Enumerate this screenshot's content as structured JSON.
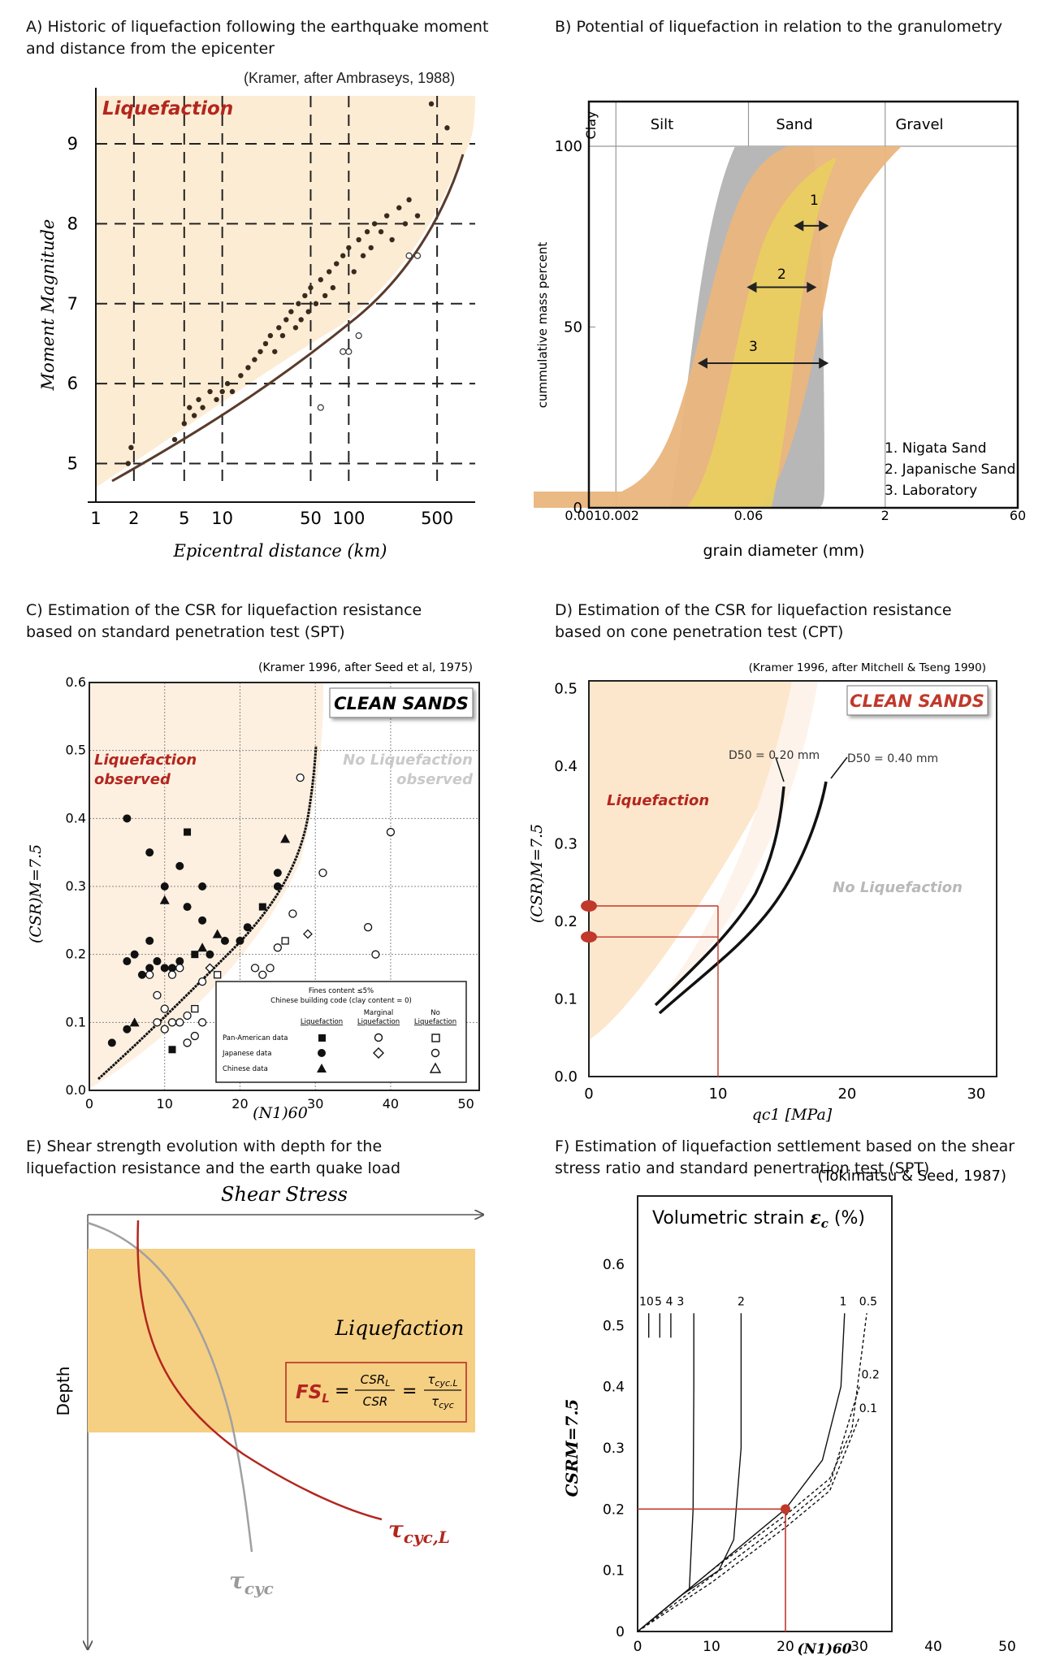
{
  "panels": {
    "A": {
      "title_line1": "A) Historic of liquefaction following the earthquake moment",
      "title_line2": "and distance from the epicenter",
      "source": "(Kramer, after Ambraseys, 1988)",
      "region_label": "Liquefaction",
      "xlabel": "Epicentral distance (km)",
      "ylabel": "Moment Magnitude",
      "xticks": [
        "1",
        "2",
        "5",
        "10",
        "50",
        "100",
        "500"
      ],
      "yticks": [
        "5",
        "6",
        "7",
        "8",
        "9"
      ]
    },
    "B": {
      "title": "B) Potential of liquefaction in relation to the granulometry",
      "classes": [
        "Clay",
        "Silt",
        "Sand",
        "Gravel"
      ],
      "ylabel": "cummulative mass percent",
      "xlabel": "grain diameter (mm)",
      "xticks": [
        "0.001",
        "0.002",
        "0.06",
        "2",
        "60"
      ],
      "yticks": [
        "0",
        "50",
        "100"
      ],
      "band_numbers": [
        "1",
        "2",
        "3"
      ],
      "legend": [
        "1. Nigata Sand",
        "2. Japanische Sand",
        "3. Laboratory"
      ]
    },
    "C": {
      "title_line1": "C) Estimation of the CSR for liquefaction resistance",
      "title_line2": "based on standard penetration test (SPT)",
      "source": "(Kramer 1996, after Seed et al, 1975)",
      "badge": "CLEAN SANDS",
      "liq_label_1": "Liquefaction",
      "liq_label_2": "observed",
      "noliq_label_1": "No Liquefaction",
      "noliq_label_2": "observed",
      "ylabel": "(CSR)M=7.5",
      "xlabel": "(N1)60",
      "xticks": [
        "0",
        "10",
        "20",
        "30",
        "40",
        "50"
      ],
      "yticks": [
        "0.0",
        "0.1",
        "0.2",
        "0.3",
        "0.4",
        "0.5",
        "0.6"
      ],
      "legend": {
        "header1": "Fines content ≤5%",
        "header2": "Chinese building code (clay content = 0)",
        "col_liq": "Liquefaction",
        "col_marg_1": "Marginal",
        "col_marg_2": "Liquefaction",
        "col_no_1": "No",
        "col_no_2": "Liquefaction",
        "rows": [
          "Pan-American data",
          "Japanese data",
          "Chinese data"
        ]
      }
    },
    "D": {
      "title_line1": "D) Estimation of the CSR for liquefaction resistance",
      "title_line2": "based on cone penetration test (CPT)",
      "source": "(Kramer 1996, after Mitchell & Tseng 1990)",
      "badge": "CLEAN SANDS",
      "liq_label": "Liquefaction",
      "noliq_label": "No Liquefaction",
      "curve1_label": "D50 = 0.20 mm",
      "curve2_label": "D50 = 0.40 mm",
      "ylabel": "(CSR)M=7.5",
      "xlabel": "qc1 [MPa]",
      "xticks": [
        "0",
        "10",
        "20",
        "30"
      ],
      "yticks": [
        "0.0",
        "0.1",
        "0.2",
        "0.3",
        "0.4",
        "0.5"
      ]
    },
    "E": {
      "title_line1": "E) Shear strength evolution with depth for the",
      "title_line2": "liquefaction resistance and the earth quake load",
      "xlabel": "Shear Stress",
      "ylabel": "Depth",
      "zone_label": "Liquefaction",
      "formula": "FSL = CSRL / CSR = τcyc.L / τcyc",
      "curve_resistance": "τcyc,L",
      "curve_load": "τcyc"
    },
    "F": {
      "title_line1": "F) Estimation of liquefaction settlement based on the shear",
      "title_line2": "stress ratio and standard penertration test (SPT)",
      "source": "(Tokimatsu & Seed, 1987)",
      "box_title": "Volumetric strain εc (%)",
      "curve_labels": [
        "10",
        "5",
        "4",
        "3",
        "2",
        "1",
        "0.5",
        "0.2",
        "0.1"
      ],
      "ylabel": "CSRM=7.5",
      "xlabel": "(N1)60",
      "xticks": [
        "0",
        "10",
        "20",
        "30",
        "40",
        "50"
      ],
      "yticks": [
        "0",
        "0.1",
        "0.2",
        "0.3",
        "0.4",
        "0.5",
        "0.6"
      ]
    }
  },
  "chart_data": [
    {
      "id": "A",
      "type": "scatter",
      "title": "Historic of liquefaction following the earthquake moment and distance from the epicenter",
      "xlabel": "Epicentral distance (km)",
      "ylabel": "Moment Magnitude",
      "xscale": "log",
      "xlim": [
        1,
        1000
      ],
      "ylim": [
        4.7,
        9.6
      ],
      "boundary": {
        "x": [
          1.5,
          3,
          5,
          10,
          20,
          40,
          70,
          120,
          200,
          350,
          600
        ],
        "y": [
          4.8,
          5.1,
          5.4,
          5.8,
          6.1,
          6.5,
          6.9,
          7.4,
          7.8,
          8.4,
          9.1
        ]
      },
      "series": [
        {
          "name": "liquefaction",
          "points": [
            [
              1.8,
              5.0
            ],
            [
              1.9,
              5.2
            ],
            [
              4.2,
              5.3
            ],
            [
              5,
              5.5
            ],
            [
              5.5,
              5.7
            ],
            [
              6,
              5.6
            ],
            [
              6.5,
              5.8
            ],
            [
              7,
              5.7
            ],
            [
              8,
              5.9
            ],
            [
              9,
              5.8
            ],
            [
              10,
              5.9
            ],
            [
              11,
              6.0
            ],
            [
              12,
              5.9
            ],
            [
              14,
              6.1
            ],
            [
              16,
              6.2
            ],
            [
              18,
              6.3
            ],
            [
              20,
              6.4
            ],
            [
              22,
              6.5
            ],
            [
              24,
              6.6
            ],
            [
              26,
              6.4
            ],
            [
              28,
              6.7
            ],
            [
              30,
              6.6
            ],
            [
              32,
              6.8
            ],
            [
              35,
              6.9
            ],
            [
              38,
              6.7
            ],
            [
              40,
              7.0
            ],
            [
              42,
              6.8
            ],
            [
              45,
              7.1
            ],
            [
              48,
              6.9
            ],
            [
              50,
              7.2
            ],
            [
              55,
              7.0
            ],
            [
              60,
              7.3
            ],
            [
              65,
              7.1
            ],
            [
              70,
              7.4
            ],
            [
              75,
              7.2
            ],
            [
              80,
              7.5
            ],
            [
              90,
              7.6
            ],
            [
              100,
              7.7
            ],
            [
              110,
              7.4
            ],
            [
              120,
              7.8
            ],
            [
              130,
              7.6
            ],
            [
              140,
              7.9
            ],
            [
              150,
              7.7
            ],
            [
              160,
              8.0
            ],
            [
              180,
              7.9
            ],
            [
              200,
              8.1
            ],
            [
              220,
              7.8
            ],
            [
              250,
              8.2
            ],
            [
              280,
              8.0
            ],
            [
              300,
              8.3
            ],
            [
              350,
              8.1
            ],
            [
              450,
              9.5
            ],
            [
              600,
              9.2
            ]
          ]
        },
        {
          "name": "no liquefaction",
          "points": [
            [
              60,
              5.7
            ],
            [
              90,
              6.4
            ],
            [
              100,
              6.4
            ],
            [
              120,
              6.6
            ],
            [
              300,
              7.6
            ],
            [
              350,
              7.6
            ]
          ]
        }
      ]
    },
    {
      "id": "B",
      "type": "area",
      "title": "Potential of liquefaction in relation to the granulometry",
      "xlabel": "grain diameter (mm)",
      "ylabel": "cummulative mass percent",
      "xscale": "log",
      "xlim": [
        0.001,
        60
      ],
      "ylim": [
        0,
        100
      ],
      "series": [
        {
          "name": "Nigata Sand",
          "d_at_50pct_range": [
            0.07,
            0.3
          ]
        },
        {
          "name": "Japanische Sand",
          "d_at_50pct_range": [
            0.05,
            0.3
          ]
        },
        {
          "name": "Laboratory",
          "d_at_50pct_range": [
            0.02,
            0.4
          ]
        }
      ]
    },
    {
      "id": "C",
      "type": "scatter",
      "title": "Estimation of the CSR for liquefaction resistance based on standard penetration test (SPT)",
      "xlabel": "(N1)60",
      "ylabel": "(CSR)M=7.5",
      "xlim": [
        0,
        50
      ],
      "ylim": [
        0,
        0.6
      ],
      "boundary": {
        "x": [
          1,
          5,
          10,
          15,
          20,
          25,
          28,
          30
        ],
        "y": [
          0.01,
          0.06,
          0.11,
          0.16,
          0.22,
          0.31,
          0.38,
          0.45
        ]
      },
      "series": [
        {
          "name": "liquefaction",
          "points": [
            [
              5,
              0.4
            ],
            [
              8,
              0.35
            ],
            [
              10,
              0.3
            ],
            [
              10,
              0.28
            ],
            [
              12,
              0.33
            ],
            [
              13,
              0.38
            ],
            [
              13,
              0.27
            ],
            [
              15,
              0.3
            ],
            [
              15,
              0.25
            ],
            [
              16,
              0.2
            ],
            [
              17,
              0.23
            ],
            [
              18,
              0.22
            ],
            [
              20,
              0.22
            ],
            [
              21,
              0.24
            ],
            [
              23,
              0.27
            ],
            [
              25,
              0.3
            ],
            [
              25,
              0.32
            ],
            [
              26,
              0.37
            ],
            [
              8,
              0.22
            ],
            [
              9,
              0.19
            ],
            [
              10,
              0.18
            ],
            [
              11,
              0.18
            ],
            [
              12,
              0.19
            ],
            [
              14,
              0.2
            ],
            [
              15,
              0.21
            ],
            [
              5,
              0.19
            ],
            [
              6,
              0.2
            ],
            [
              7,
              0.17
            ],
            [
              8,
              0.18
            ],
            [
              3,
              0.07
            ],
            [
              5,
              0.09
            ],
            [
              6,
              0.1
            ],
            [
              11,
              0.06
            ]
          ]
        },
        {
          "name": "no liquefaction",
          "points": [
            [
              28,
              0.46
            ],
            [
              31,
              0.32
            ],
            [
              40,
              0.38
            ],
            [
              37,
              0.24
            ],
            [
              29,
              0.23
            ],
            [
              27,
              0.26
            ],
            [
              26,
              0.22
            ],
            [
              25,
              0.21
            ],
            [
              38,
              0.2
            ],
            [
              22,
              0.18
            ],
            [
              23,
              0.17
            ],
            [
              24,
              0.18
            ],
            [
              15,
              0.16
            ],
            [
              16,
              0.18
            ],
            [
              17,
              0.17
            ],
            [
              9,
              0.14
            ],
            [
              10,
              0.12
            ],
            [
              9,
              0.1
            ],
            [
              10,
              0.09
            ],
            [
              11,
              0.1
            ],
            [
              12,
              0.1
            ],
            [
              13,
              0.11
            ],
            [
              14,
              0.12
            ],
            [
              13,
              0.07
            ],
            [
              14,
              0.08
            ],
            [
              15,
              0.1
            ],
            [
              8,
              0.17
            ],
            [
              11,
              0.17
            ],
            [
              12,
              0.18
            ]
          ]
        }
      ]
    },
    {
      "id": "D",
      "type": "line",
      "title": "Estimation of the CSR for liquefaction resistance based on cone penetration test (CPT)",
      "xlabel": "qc1 [MPa]",
      "ylabel": "(CSR)M=7.5",
      "xlim": [
        0,
        30
      ],
      "ylim": [
        0,
        0.5
      ],
      "series": [
        {
          "name": "D50 = 0.20 mm",
          "x": [
            5,
            8,
            10,
            12,
            14,
            15.5
          ],
          "y": [
            0.13,
            0.18,
            0.23,
            0.29,
            0.36,
            0.42
          ]
        },
        {
          "name": "D50 = 0.40 mm",
          "x": [
            5,
            8,
            10,
            12,
            14,
            16,
            17.5
          ],
          "y": [
            0.12,
            0.16,
            0.19,
            0.24,
            0.3,
            0.37,
            0.43
          ]
        }
      ],
      "example": {
        "x": 10,
        "y": [
          0.22,
          0.18
        ]
      }
    },
    {
      "id": "E",
      "type": "line",
      "title": "Shear strength evolution with depth for the liquefaction resistance and the earth quake load",
      "xlabel": "Shear Stress",
      "ylabel": "Depth",
      "series": [
        {
          "name": "τcyc,L"
        },
        {
          "name": "τcyc"
        }
      ]
    },
    {
      "id": "F",
      "type": "line",
      "title": "Estimation of liquefaction settlement based on the shear stress ratio and standard penertration test (SPT)",
      "xlabel": "(N1)60",
      "ylabel": "CSRM=7.5",
      "xlim": [
        0,
        50
      ],
      "ylim": [
        0,
        0.6
      ],
      "series": [
        {
          "name": "10",
          "x": [
            1.5,
            1.5
          ],
          "y": [
            0.48,
            0.52
          ]
        },
        {
          "name": "5",
          "x": [
            3,
            3
          ],
          "y": [
            0.48,
            0.52
          ]
        },
        {
          "name": "4",
          "x": [
            4.5,
            4.5
          ],
          "y": [
            0.48,
            0.52
          ]
        },
        {
          "name": "3",
          "x": [
            0,
            4,
            7,
            7.5,
            7.6,
            7.6
          ],
          "y": [
            0,
            0.04,
            0.07,
            0.2,
            0.4,
            0.52
          ]
        },
        {
          "name": "2",
          "x": [
            0,
            6,
            11,
            13,
            14,
            14
          ],
          "y": [
            0,
            0.06,
            0.1,
            0.15,
            0.3,
            0.52
          ]
        },
        {
          "name": "1",
          "x": [
            0,
            10,
            20,
            25,
            27.5,
            28
          ],
          "y": [
            0,
            0.1,
            0.2,
            0.28,
            0.4,
            0.52
          ]
        },
        {
          "name": "0.5",
          "x": [
            0,
            10,
            20,
            26,
            29,
            31
          ],
          "y": [
            0,
            0.1,
            0.19,
            0.25,
            0.33,
            0.52
          ]
        },
        {
          "name": "0.2",
          "x": [
            0,
            10,
            20,
            26,
            30
          ],
          "y": [
            0,
            0.09,
            0.18,
            0.24,
            0.4
          ]
        },
        {
          "name": "0.1",
          "x": [
            0,
            10,
            20,
            26,
            30
          ],
          "y": [
            0,
            0.08,
            0.17,
            0.23,
            0.35
          ]
        }
      ],
      "example": {
        "x": 20,
        "y": 0.2
      }
    }
  ]
}
